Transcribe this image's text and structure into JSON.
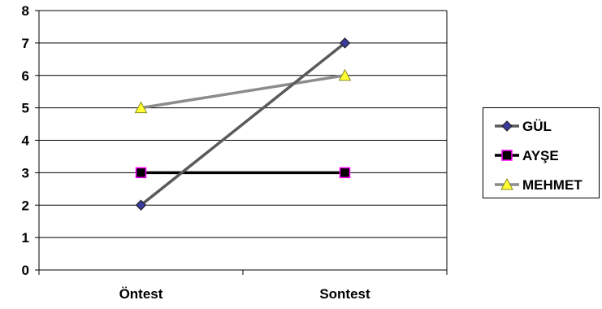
{
  "chart_data": {
    "type": "line",
    "categories": [
      "Öntest",
      "Sontest"
    ],
    "ylim": [
      0,
      8
    ],
    "yticks": [
      "0",
      "1",
      "2",
      "3",
      "4",
      "5",
      "6",
      "7",
      "8"
    ],
    "grid": true,
    "legend_position": "right",
    "series": [
      {
        "name": "GÜL",
        "values": [
          2,
          7
        ],
        "color": "#5a5a5a",
        "marker": "diamond",
        "marker_fill": "#3b3b9c"
      },
      {
        "name": "AYŞE",
        "values": [
          3,
          3
        ],
        "color": "#000000",
        "marker": "square",
        "marker_fill": "#000000",
        "marker_stroke": "#ff00ff"
      },
      {
        "name": "MEHMET",
        "values": [
          5,
          6
        ],
        "color": "#8c8c8c",
        "marker": "triangle",
        "marker_fill": "#ffff33"
      }
    ]
  }
}
